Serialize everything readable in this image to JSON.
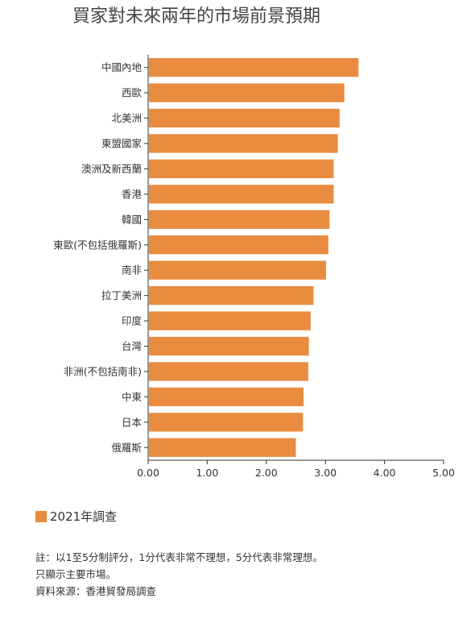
{
  "chart_data": {
    "type": "bar",
    "orientation": "horizontal",
    "title": "買家對未來兩年的市場前景預期",
    "categories": [
      "中國內地",
      "西歐",
      "北美洲",
      "東盟國家",
      "澳洲及新西蘭",
      "香港",
      "韓國",
      "東歐(不包括俄羅斯)",
      "南非",
      "拉丁美洲",
      "印度",
      "台灣",
      "非洲(不包括南非)",
      "中東",
      "日本",
      "俄羅斯"
    ],
    "series": [
      {
        "name": "2021年調查",
        "values": [
          3.56,
          3.32,
          3.24,
          3.21,
          3.14,
          3.14,
          3.07,
          3.05,
          3.01,
          2.8,
          2.75,
          2.72,
          2.71,
          2.63,
          2.62,
          2.5
        ],
        "color": "#E98C3F"
      }
    ],
    "xlim": [
      0,
      5
    ],
    "xticks": [
      "0.00",
      "1.00",
      "2.00",
      "3.00",
      "4.00",
      "5.00"
    ],
    "grid": false,
    "legend_position": "bottom-left"
  },
  "notes": [
    "註：以1至5分制評分，1分代表非常不理想，5分代表非常理想。",
    "只顯示主要市場。",
    "資料來源：香港貿發局調查"
  ]
}
